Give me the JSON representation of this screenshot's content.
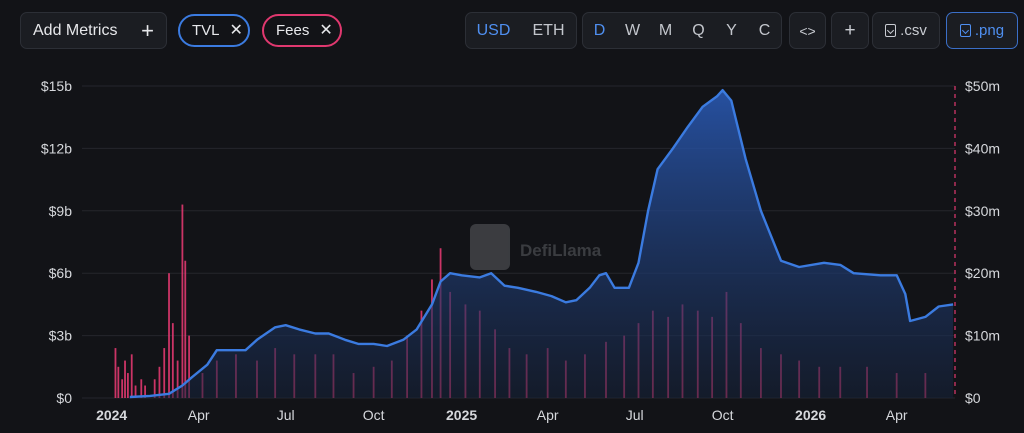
{
  "toolbar": {
    "add_metrics_label": "Add Metrics",
    "add_metrics_icon": "+",
    "chips": [
      {
        "label": "TVL",
        "color": "#3b7be0"
      },
      {
        "label": "Fees",
        "color": "#e0386f"
      }
    ],
    "currency": [
      {
        "label": "USD",
        "active": true
      },
      {
        "label": "ETH",
        "active": false
      }
    ],
    "periods": [
      {
        "label": "D",
        "active": true
      },
      {
        "label": "W",
        "active": false
      },
      {
        "label": "M",
        "active": false
      },
      {
        "label": "Q",
        "active": false
      },
      {
        "label": "Y",
        "active": false
      },
      {
        "label": "C",
        "active": false
      }
    ],
    "embed_label": "<>",
    "add_label": "+",
    "csv_label": ".csv",
    "png_label": ".png"
  },
  "watermark": "DefiLlama",
  "chart_data": {
    "type": "line",
    "x_start": "2023-12-01",
    "x_end": "2026-06-01",
    "x_tick_labels": [
      {
        "label": "2024",
        "date": "2024-01-01",
        "bold": true
      },
      {
        "label": "Apr",
        "date": "2024-04-01",
        "bold": false
      },
      {
        "label": "Jul",
        "date": "2024-07-01",
        "bold": false
      },
      {
        "label": "Oct",
        "date": "2024-10-01",
        "bold": false
      },
      {
        "label": "2025",
        "date": "2025-01-01",
        "bold": true
      },
      {
        "label": "Apr",
        "date": "2025-04-01",
        "bold": false
      },
      {
        "label": "Jul",
        "date": "2025-07-01",
        "bold": false
      },
      {
        "label": "Oct",
        "date": "2025-10-01",
        "bold": false
      },
      {
        "label": "2026",
        "date": "2026-01-01",
        "bold": true
      },
      {
        "label": "Apr",
        "date": "2026-04-01",
        "bold": false
      }
    ],
    "y_left": {
      "min": 0,
      "max": 15,
      "ticks": [
        0,
        3,
        6,
        9,
        12,
        15
      ],
      "tick_labels": [
        "$0",
        "$3b",
        "$6b",
        "$9b",
        "$12b",
        "$15b"
      ]
    },
    "y_right": {
      "min": 0,
      "max": 50,
      "ticks": [
        0,
        10,
        20,
        30,
        40,
        50
      ],
      "tick_labels": [
        "$0",
        "$10m",
        "$20m",
        "$30m",
        "$40m",
        "$50m"
      ]
    },
    "series": [
      {
        "name": "TVL",
        "axis": "left",
        "unit": "billion USD",
        "color": "#3b7be0",
        "points": [
          [
            "2024-01-20",
            0.05
          ],
          [
            "2024-02-10",
            0.1
          ],
          [
            "2024-03-01",
            0.2
          ],
          [
            "2024-03-15",
            0.6
          ],
          [
            "2024-03-25",
            1.0
          ],
          [
            "2024-04-10",
            1.6
          ],
          [
            "2024-04-20",
            2.3
          ],
          [
            "2024-05-01",
            2.3
          ],
          [
            "2024-05-20",
            2.3
          ],
          [
            "2024-06-01",
            2.8
          ],
          [
            "2024-06-20",
            3.4
          ],
          [
            "2024-07-01",
            3.5
          ],
          [
            "2024-07-15",
            3.3
          ],
          [
            "2024-08-01",
            3.1
          ],
          [
            "2024-08-15",
            3.1
          ],
          [
            "2024-09-01",
            2.8
          ],
          [
            "2024-09-15",
            2.6
          ],
          [
            "2024-10-01",
            2.6
          ],
          [
            "2024-10-15",
            2.5
          ],
          [
            "2024-11-01",
            2.8
          ],
          [
            "2024-11-15",
            3.3
          ],
          [
            "2024-12-01",
            4.5
          ],
          [
            "2024-12-10",
            5.6
          ],
          [
            "2024-12-20",
            6.0
          ],
          [
            "2025-01-01",
            5.9
          ],
          [
            "2025-01-20",
            5.8
          ],
          [
            "2025-02-01",
            6.0
          ],
          [
            "2025-02-15",
            5.4
          ],
          [
            "2025-03-01",
            5.3
          ],
          [
            "2025-03-20",
            5.1
          ],
          [
            "2025-04-05",
            4.9
          ],
          [
            "2025-04-20",
            4.6
          ],
          [
            "2025-05-01",
            4.7
          ],
          [
            "2025-05-15",
            5.3
          ],
          [
            "2025-05-25",
            5.9
          ],
          [
            "2025-06-01",
            6.0
          ],
          [
            "2025-06-10",
            5.3
          ],
          [
            "2025-06-25",
            5.3
          ],
          [
            "2025-07-05",
            6.5
          ],
          [
            "2025-07-15",
            9.0
          ],
          [
            "2025-07-25",
            11.0
          ],
          [
            "2025-08-10",
            12.0
          ],
          [
            "2025-08-25",
            13.0
          ],
          [
            "2025-09-10",
            14.0
          ],
          [
            "2025-09-25",
            14.5
          ],
          [
            "2025-10-01",
            14.8
          ],
          [
            "2025-10-10",
            14.3
          ],
          [
            "2025-10-25",
            11.5
          ],
          [
            "2025-11-10",
            9.0
          ],
          [
            "2025-12-01",
            6.6
          ],
          [
            "2025-12-20",
            6.3
          ],
          [
            "2026-01-15",
            6.5
          ],
          [
            "2026-02-01",
            6.4
          ],
          [
            "2026-02-15",
            6.0
          ],
          [
            "2026-03-15",
            5.9
          ],
          [
            "2026-04-01",
            5.9
          ],
          [
            "2026-04-10",
            5.0
          ],
          [
            "2026-04-15",
            3.7
          ],
          [
            "2026-05-01",
            3.9
          ],
          [
            "2026-05-15",
            4.4
          ],
          [
            "2026-05-30",
            4.5
          ]
        ]
      },
      {
        "name": "Fees",
        "axis": "right",
        "unit": "million USD",
        "color": "#e0386f",
        "daily_bars": [
          [
            "2024-01-05",
            8
          ],
          [
            "2024-01-08",
            5
          ],
          [
            "2024-01-12",
            3
          ],
          [
            "2024-01-15",
            6
          ],
          [
            "2024-01-18",
            4
          ],
          [
            "2024-01-22",
            7
          ],
          [
            "2024-01-26",
            2
          ],
          [
            "2024-02-01",
            3
          ],
          [
            "2024-02-05",
            2
          ],
          [
            "2024-02-15",
            3
          ],
          [
            "2024-02-20",
            5
          ],
          [
            "2024-02-25",
            8
          ],
          [
            "2024-03-01",
            20
          ],
          [
            "2024-03-05",
            12
          ],
          [
            "2024-03-10",
            6
          ],
          [
            "2024-03-15",
            31
          ],
          [
            "2024-03-18",
            22
          ],
          [
            "2024-03-22",
            10
          ],
          [
            "2024-04-05",
            4
          ],
          [
            "2024-04-20",
            6
          ],
          [
            "2024-05-10",
            7
          ],
          [
            "2024-06-01",
            6
          ],
          [
            "2024-06-20",
            8
          ],
          [
            "2024-07-10",
            7
          ],
          [
            "2024-08-01",
            7
          ],
          [
            "2024-08-20",
            7
          ],
          [
            "2024-09-10",
            4
          ],
          [
            "2024-10-01",
            5
          ],
          [
            "2024-10-20",
            6
          ],
          [
            "2024-11-05",
            10
          ],
          [
            "2024-11-20",
            14
          ],
          [
            "2024-12-01",
            19
          ],
          [
            "2024-12-10",
            24
          ],
          [
            "2024-12-20",
            17
          ],
          [
            "2025-01-05",
            15
          ],
          [
            "2025-01-20",
            14
          ],
          [
            "2025-02-05",
            11
          ],
          [
            "2025-02-20",
            8
          ],
          [
            "2025-03-10",
            7
          ],
          [
            "2025-04-01",
            8
          ],
          [
            "2025-04-20",
            6
          ],
          [
            "2025-05-10",
            7
          ],
          [
            "2025-06-01",
            9
          ],
          [
            "2025-06-20",
            10
          ],
          [
            "2025-07-05",
            12
          ],
          [
            "2025-07-20",
            14
          ],
          [
            "2025-08-05",
            13
          ],
          [
            "2025-08-20",
            15
          ],
          [
            "2025-09-05",
            14
          ],
          [
            "2025-09-20",
            13
          ],
          [
            "2025-10-05",
            17
          ],
          [
            "2025-10-20",
            12
          ],
          [
            "2025-11-10",
            8
          ],
          [
            "2025-12-01",
            7
          ],
          [
            "2025-12-20",
            6
          ],
          [
            "2026-01-10",
            5
          ],
          [
            "2026-02-01",
            5
          ],
          [
            "2026-03-01",
            5
          ],
          [
            "2026-04-01",
            4
          ],
          [
            "2026-05-01",
            4
          ]
        ]
      }
    ],
    "legend": "toolbar chips",
    "grid": true
  }
}
